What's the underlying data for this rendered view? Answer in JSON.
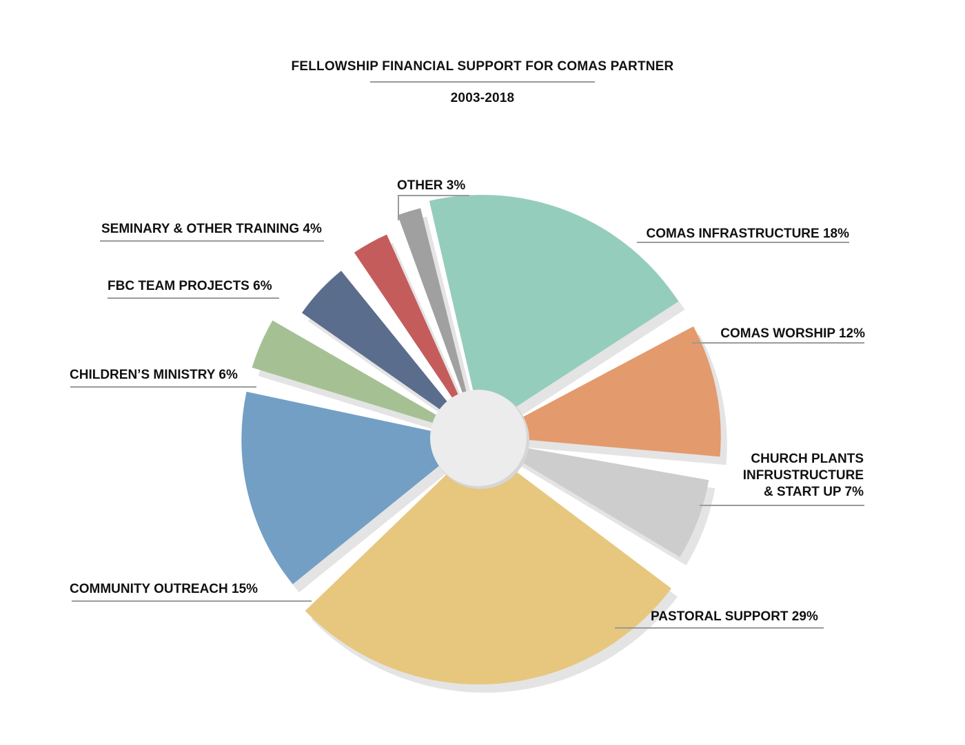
{
  "header": {
    "title": "FELLOWSHIP FINANCIAL SUPPORT FOR COMAS PARTNER",
    "subtitle": "2003-2018"
  },
  "labels": {
    "comas_infrastructure": "COMAS INFRASTRUCTURE 18%",
    "comas_worship": "COMAS WORSHIP 12%",
    "church_plants_1": "CHURCH PLANTS",
    "church_plants_2": "INFRUSTRUCTURE",
    "church_plants_3": "& START UP 7%",
    "pastoral_support": "PASTORAL SUPPORT 29%",
    "community_outreach": "COMMUNITY OUTREACH 15%",
    "childrens_ministry": "CHILDREN’S MINISTRY 6%",
    "fbc_team_projects": "FBC TEAM PROJECTS 6%",
    "seminary": "SEMINARY & OTHER TRAINING 4%",
    "other": "OTHER 3%"
  },
  "colors": {
    "shadow": "#e4e4e4",
    "hub": "#ececec",
    "leader": "#9a9a9a"
  },
  "chart_data": {
    "type": "pie",
    "title": "FELLOWSHIP FINANCIAL SUPPORT FOR COMAS PARTNER",
    "subtitle": "2003-2018",
    "style": "exploded donut with drop shadow, center hub circle",
    "categories": [
      "Comas Infrastructure",
      "Comas Worship",
      "Church Plants Infrustructure & Start Up",
      "Pastoral Support",
      "Community Outreach",
      "Children's Ministry",
      "FBC Team Projects",
      "Seminary & Other Training",
      "Other"
    ],
    "values": [
      18,
      12,
      7,
      29,
      15,
      6,
      6,
      4,
      3
    ],
    "unit": "%",
    "slice_colors": [
      "#95cdbd",
      "#e39a6d",
      "#cdcdcd",
      "#e7c77e",
      "#739fc5",
      "#a5c194",
      "#5b6d8d",
      "#c55c5c",
      "#a0a0a0"
    ],
    "legend": "none (callout labels with leader lines)"
  }
}
